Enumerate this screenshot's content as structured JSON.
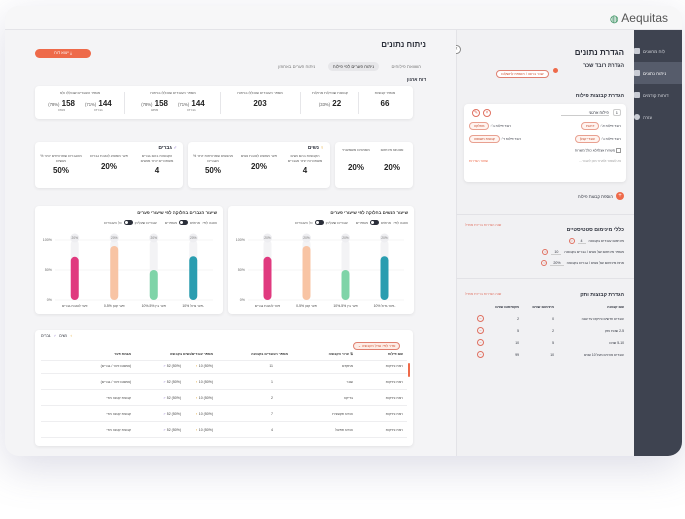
{
  "app": {
    "logo": "Aequitas"
  },
  "sidebar": {
    "items": [
      {
        "label": "לוח מחוונים",
        "active": false
      },
      {
        "label": "ניתוח נתונים",
        "active": true
      },
      {
        "label": "דוחות קודמים",
        "active": false
      },
      {
        "label": "עזרה",
        "active": false
      }
    ]
  },
  "settings": {
    "title": "הגדרת נתונים",
    "group_label": "הגדרת רובד שכר",
    "group_pill": "שכר ברוטו / תוספת לתשלום",
    "groups_title": "הגדרת קבוצות פילוח",
    "row_index": "1",
    "row_name": "פילוח ארגוני",
    "filters": [
      {
        "label": "רובד פילוח א׳:",
        "value": "דרגות",
        "label2": "רובד פילוח ב׳:",
        "value2": "מחלקה"
      },
      {
        "label": "רובד פילוח ג׳:",
        "value": "עובדי קבלן",
        "label2": "רובד פילוח ד׳:",
        "value2": "קבוצת השוואה"
      }
    ],
    "checkbox_label": "משרות אצלו/לא כולל משרות",
    "hint_text": "נא לשמור ולאחר מכן לעבור...",
    "save_link": "שמור הגדרות",
    "add_group": "הוספת קבוצת פילוח",
    "thresholds_title": "כללי מינימום סטטיסטיים",
    "thresholds_note": "שנה הגדרות ברירת מחדל",
    "thresholds": [
      {
        "label": "מינימום עובדים בקבוצה",
        "value": "4"
      },
      {
        "label": "מספר מינימום של נשים / גברים בקבוצה",
        "value": "10"
      },
      {
        "label": "אחוז מינימום של נשים / גברים בקבוצה",
        "value": "20%"
      }
    ],
    "seniority_title": "הגדרת קבוצות ותק",
    "seniority_note": "שנה הגדרות ברירת מחדל",
    "seniority_headers": [
      "שם קבוצה",
      "מינימום שנים",
      "מקסימום שנים"
    ],
    "seniority_rows": [
      {
        "name": "עובדים חדשים ותיקים עד שנה",
        "min": "0",
        "max": "2"
      },
      {
        "name": "2-5 שנות ותק",
        "min": "2",
        "max": "5"
      },
      {
        "name": "5-10 שנים",
        "min": "5",
        "max": "10"
      },
      {
        "name": "עובדים אורכים מעל 10 שנים",
        "min": "10",
        "max": "99"
      }
    ]
  },
  "main": {
    "title": "ניתוח נתונים",
    "export_button": "ייצוא דוח",
    "tabs": [
      {
        "label": "השוואת פילוחים",
        "active": false
      },
      {
        "label": "ניתוח פערים לפי פילוח",
        "active": true
      },
      {
        "label": "ניתוח פערים באחוזון",
        "active": false
      }
    ],
    "org_section": "דוח ארגון",
    "org_stats": [
      {
        "label": "מספר קבוצות",
        "value": "66",
        "pct": "",
        "sub": ""
      },
      {
        "label": "קבוצות שבדלות מהילות",
        "value": "22",
        "pct": "(33%)",
        "sub": ""
      },
      {
        "label": "מספר העובדים שנכללו בניתוח",
        "value": "203",
        "pct": "",
        "sub": ""
      },
      {
        "label": "מספר העובדים שנכללו בניתוח",
        "value": "158",
        "pct": "(78%)",
        "sub": "ממש"
      },
      {
        "label": "מספר העובדים שנכללו בניתוח",
        "value": "144",
        "pct": "(71%)",
        "sub": "גברים"
      },
      {
        "label": "מספר העובדים שנכללו ולא",
        "value": "158",
        "pct": "(78%)",
        "sub": "נשים"
      },
      {
        "label": "נכללו בניתוח",
        "value": "144",
        "pct": "(71%)",
        "sub": "גברים"
      }
    ],
    "threshold_card": {
      "labels": [
        "סטטוס מינימום",
        "מסמכים משמעותי"
      ],
      "values": [
        "20%",
        "20%"
      ]
    },
    "women_card": {
      "title": "נשים",
      "stats": [
        {
          "label": "הקבוצות בהם נשים משתכרות יותר מגברים",
          "value": "4"
        },
        {
          "label": "פער ממוצע לטובת נשים",
          "value": "20%"
        },
        {
          "label": "% מהנשים שמרוויחות יותר מגברים",
          "value": "50%"
        }
      ]
    },
    "men_card": {
      "title": "גברים",
      "stats": [
        {
          "label": "הקבוצות בהם גברים משתכרים יותר מנשים",
          "value": "4"
        },
        {
          "label": "פער ממוצע לטובת גברים",
          "value": "20%"
        },
        {
          "label": "% מהגברים שמרוויחים יותר מנשים",
          "value": "50%"
        }
      ]
    },
    "charts": [
      {
        "title": "שיעור הנשים בחלוקה לפי שיעורי פערים",
        "ctrl_a": "הצגה לפי:",
        "ctrl_b": "אחוזים",
        "ctrl_c": "מספרים",
        "ctrl_d": "עובדים שעליהן",
        "ctrl_e": "כל העובדים",
        "ticks": [
          "100%",
          "50%",
          "0%"
        ],
        "bars": [
          {
            "label": "פער לטובת גברים",
            "pct": "20%",
            "value": 72,
            "color": "#e03a7f"
          },
          {
            "label": "פער קטן 0-5%",
            "pct": "20%",
            "value": 90,
            "color": "#f8c4a4"
          },
          {
            "label": "פער בין 5%-10%",
            "pct": "20%",
            "value": 50,
            "color": "#7fd4a8"
          },
          {
            "label": "פער גדול 10%-",
            "pct": "20%",
            "value": 73,
            "color": "#2a9db0"
          }
        ]
      },
      {
        "title": "שיעור הגברים בחלוקה לפי שיעורי פערים",
        "ctrl_a": "הצגה לפי:",
        "ctrl_b": "אחוזים",
        "ctrl_c": "מספרים",
        "ctrl_d": "עובדים שעליהן",
        "ctrl_e": "כל העובדים",
        "ticks": [
          "100%",
          "50%",
          "0%"
        ],
        "bars": [
          {
            "label": "פער לטובת גברים",
            "pct": "20%",
            "value": 72,
            "color": "#e03a7f"
          },
          {
            "label": "פער קטן 0-5%",
            "pct": "20%",
            "value": 90,
            "color": "#f8c4a4"
          },
          {
            "label": "פער בין 5%-10%",
            "pct": "20%",
            "value": 50,
            "color": "#7fd4a8"
          },
          {
            "label": "פער גדול 10%-",
            "pct": "20%",
            "value": 73,
            "color": "#2a9db0"
          }
        ]
      }
    ],
    "table": {
      "filter_label": "סדר לפי: גודל הקבוצה",
      "legend_women": "נשים",
      "legend_men": "גברים",
      "headers": [
        "שם פילוח",
        "ערכי הקבוצה",
        "מספר העובדים בקבוצה",
        "מספר עובדים/נשים בקבוצה",
        "מגמת פער"
      ],
      "rows": [
        {
          "name": "רמת ותיקות",
          "group": "מתקדם",
          "count": "11",
          "w": "10",
          "wpct": "(50%)",
          "m": "52",
          "mpct": "(50%)",
          "trend": "(צמצום פער / גברים)"
        },
        {
          "name": "רמת ותיקות",
          "group": "שבר",
          "count": "1",
          "w": "10",
          "wpct": "(50%)",
          "m": "52",
          "mpct": "(50%)",
          "trend": "(צמצום פער / גברים)"
        },
        {
          "name": "רמת ותיקות",
          "group": "בדיקה",
          "count": "2",
          "w": "10",
          "wpct": "(50%)",
          "m": "52",
          "mpct": "(50%)",
          "trend": "קבוצת קטנה מדי"
        },
        {
          "name": "רמת ותיקות",
          "group": "הנדס תקשורת",
          "count": "7",
          "w": "10",
          "wpct": "(50%)",
          "m": "52",
          "mpct": "(50%)",
          "trend": "קבוצת קטנה מדי"
        },
        {
          "name": "רמת ותיקות",
          "group": "הנדס תפעול",
          "count": "4",
          "w": "10",
          "wpct": "(50%)",
          "m": "52",
          "mpct": "(50%)",
          "trend": "קבוצת קטנה מדי"
        }
      ]
    }
  }
}
